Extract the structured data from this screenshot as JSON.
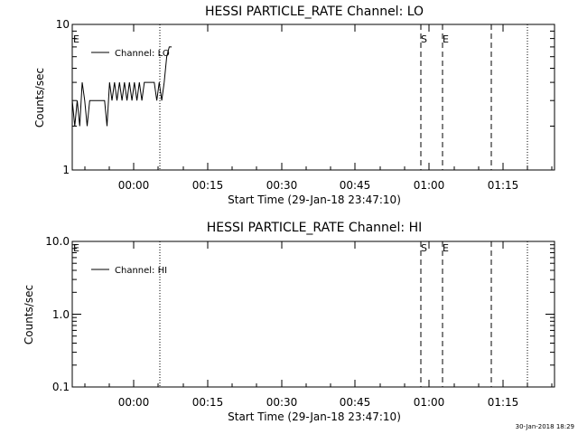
{
  "timestamp": "30-Jan-2018 18:29",
  "chart_data": [
    {
      "type": "line",
      "title": "HESSI PARTICLE_RATE Channel: LO",
      "xlabel": "Start Time (29-Jan-18 23:47:10)",
      "ylabel": "Counts/sec",
      "yscale": "log",
      "ylim": [
        1,
        10
      ],
      "ytick_labels": [
        "1",
        "10"
      ],
      "xlim_minutes_from_start": [
        0,
        97
      ],
      "xtick_labels": [
        "00:00",
        "00:15",
        "00:30",
        "00:45",
        "01:00",
        "01:15"
      ],
      "legend": "Channel: LO",
      "event_markers": [
        "E",
        "S",
        "E"
      ],
      "series": [
        {
          "name": "Channel: LO",
          "x_minutes_from_start": [
            0,
            0.5,
            1,
            1.5,
            2,
            2.5,
            3,
            3.5,
            4,
            4.5,
            5,
            5.5,
            6,
            6.5,
            7,
            7.5,
            8,
            8.5,
            9,
            9.5,
            10,
            10.5,
            11,
            11.5,
            12,
            12.5,
            13,
            13.5,
            14,
            14.5,
            15,
            15.5,
            16,
            16.5,
            17,
            17.5,
            18,
            18.5,
            19,
            19.5,
            20
          ],
          "y": [
            3,
            2,
            3,
            2,
            4,
            3,
            2,
            3,
            3,
            3,
            3,
            3,
            3,
            3,
            2,
            4,
            3,
            4,
            3,
            4,
            3,
            4,
            3,
            4,
            3,
            4,
            3,
            4,
            3,
            4,
            4,
            4,
            4,
            4,
            3,
            4,
            3,
            4,
            6,
            7,
            7
          ]
        }
      ]
    },
    {
      "type": "line",
      "title": "HESSI PARTICLE_RATE Channel: HI",
      "xlabel": "Start Time (29-Jan-18 23:47:10)",
      "ylabel": "Counts/sec",
      "yscale": "log",
      "ylim": [
        0.1,
        10
      ],
      "ytick_labels": [
        "0.1",
        "1.0",
        "10.0"
      ],
      "xlim_minutes_from_start": [
        0,
        97
      ],
      "xtick_labels": [
        "00:00",
        "00:15",
        "00:30",
        "00:45",
        "01:00",
        "01:15"
      ],
      "legend": "Channel: HI",
      "event_markers": [
        "E",
        "S",
        "E"
      ],
      "series": []
    }
  ]
}
